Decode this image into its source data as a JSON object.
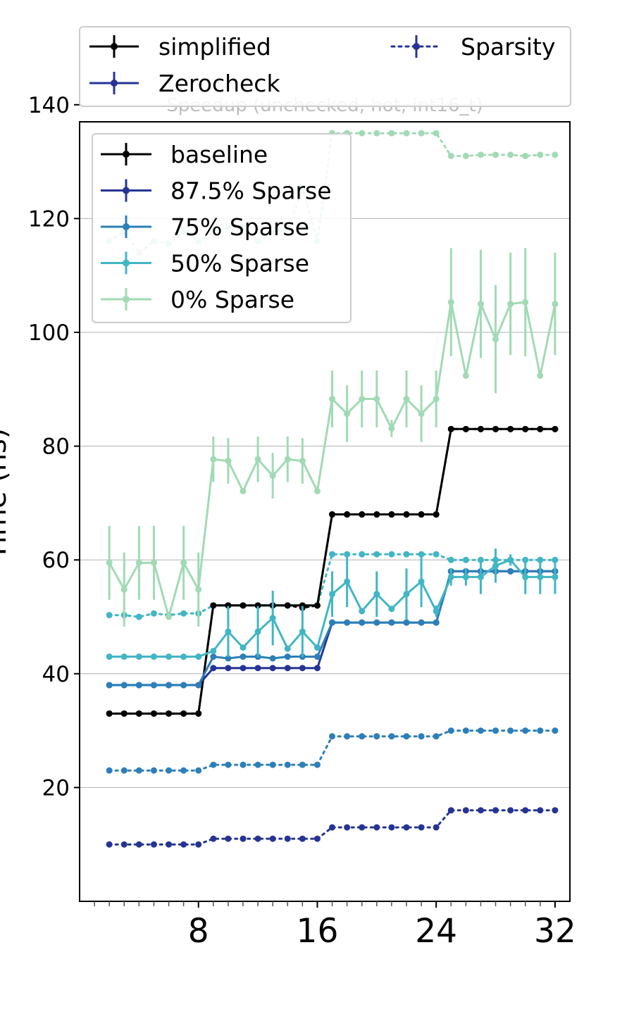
{
  "chart_data": {
    "type": "line",
    "title": "Speedup (unchecked, hot, int16_t)",
    "ylabel": "Time (ns)",
    "xlabel": "",
    "xlim": [
      0,
      33
    ],
    "ylim": [
      0,
      137
    ],
    "x_ticks": [
      8,
      16,
      24,
      32
    ],
    "y_ticks": [
      20,
      40,
      60,
      80,
      100,
      120,
      140
    ],
    "x_minor_ticks": [
      1,
      2,
      3,
      4,
      5,
      6,
      7,
      8,
      9,
      10,
      11,
      12,
      13,
      14,
      15,
      16,
      17,
      18,
      19,
      20,
      21,
      22,
      23,
      24,
      25,
      26,
      27,
      28,
      29,
      30,
      31,
      32
    ],
    "grid": "horizontal",
    "legend_style": {
      "title": "",
      "placement": "above plot",
      "entries": [
        {
          "label": "simplified",
          "color": "#000000",
          "dash": "solid"
        },
        {
          "label": "Sparsity",
          "color": "#253494",
          "dash": "dotted"
        },
        {
          "label": "Zerocheck",
          "color": "#253494",
          "dash": "solid"
        }
      ]
    },
    "legend_series": {
      "placement": "upper-left",
      "entries": [
        {
          "label": "baseline",
          "color": "#000000"
        },
        {
          "label": "87.5% Sparse",
          "color": "#253494"
        },
        {
          "label": "75% Sparse",
          "color": "#2c7fb8"
        },
        {
          "label": "50% Sparse",
          "color": "#41b6c4"
        },
        {
          "label": "0% Sparse",
          "color": "#a1dab4"
        }
      ]
    },
    "x": [
      2,
      3,
      4,
      5,
      6,
      7,
      8,
      9,
      10,
      11,
      12,
      13,
      14,
      15,
      16,
      17,
      18,
      19,
      20,
      21,
      22,
      23,
      24,
      25,
      26,
      27,
      28,
      29,
      30,
      31,
      32
    ],
    "series": [
      {
        "name": "baseline",
        "style": "solid",
        "color": "#000000",
        "values": [
          33,
          33,
          33,
          33,
          33,
          33,
          33,
          52,
          52,
          52,
          52,
          52,
          52,
          52,
          52,
          68,
          68,
          68,
          68,
          68,
          68,
          68,
          68,
          83,
          83,
          83,
          83,
          83,
          83,
          83,
          83
        ]
      },
      {
        "name": "87.5% Sparse",
        "style": "solid",
        "color": "#253494",
        "values": [
          38,
          38,
          38,
          38,
          38,
          38,
          38,
          41,
          41,
          41,
          41,
          41,
          41,
          41,
          41,
          49,
          49,
          49,
          49,
          49,
          49,
          49,
          49,
          58,
          58,
          58,
          58,
          58,
          58,
          58,
          58
        ]
      },
      {
        "name": "75% Sparse",
        "style": "solid",
        "color": "#2c7fb8",
        "values": [
          38,
          38,
          38,
          38,
          38,
          38,
          38,
          43,
          42.7,
          43,
          43,
          42.7,
          43,
          43,
          43,
          49,
          49,
          49,
          49,
          49,
          49,
          49,
          49,
          58,
          58,
          58,
          58,
          58,
          58,
          58,
          58
        ]
      },
      {
        "name": "50% Sparse",
        "style": "solid",
        "color": "#41b6c4",
        "values": [
          43,
          43,
          43,
          43,
          43,
          43,
          43,
          44,
          47.4,
          44.6,
          47.4,
          49.8,
          44.4,
          47.4,
          44.6,
          54,
          56.2,
          51,
          54,
          51.4,
          54,
          56.2,
          51,
          57,
          57,
          57,
          59,
          60,
          57,
          57,
          57
        ],
        "errors": [
          0,
          0,
          0,
          0,
          0,
          0,
          0,
          0,
          4.5,
          0,
          4.5,
          4.8,
          0,
          4.5,
          0,
          4,
          4.5,
          0,
          4,
          0,
          4.5,
          4.5,
          1,
          1.5,
          1.5,
          3,
          3,
          1,
          3,
          3,
          3
        ]
      },
      {
        "name": "0% Sparse",
        "style": "solid",
        "color": "#a1dab4",
        "values": [
          59.5,
          54.8,
          59.5,
          59.5,
          50,
          59.5,
          54.8,
          77.7,
          77.4,
          72.1,
          77.7,
          74.8,
          77.7,
          77.4,
          72.1,
          88.3,
          85.7,
          88.3,
          88.3,
          83.1,
          88.3,
          85.7,
          88.3,
          105.3,
          92.4,
          105,
          98.8,
          105,
          105.3,
          92.4,
          105
        ],
        "errors": [
          6.5,
          6.5,
          6.5,
          6.5,
          0,
          6.5,
          6.5,
          4,
          4,
          0,
          4,
          4,
          4,
          4,
          0,
          5,
          5,
          5,
          5,
          1.5,
          5,
          5,
          5,
          9.5,
          0,
          9.5,
          9.5,
          9,
          9.5,
          0,
          9
        ]
      },
      {
        "name": "baseline simplified",
        "style": "dotted",
        "color": "#000000",
        "values": [
          33,
          33,
          33,
          33,
          33,
          33,
          33,
          52,
          52,
          52,
          52,
          52,
          52,
          51.6,
          52,
          68,
          68,
          68,
          68,
          68,
          68,
          68,
          68,
          83,
          83,
          83,
          83,
          83,
          83,
          83,
          83
        ]
      },
      {
        "name": "87.5% Sparse simplified",
        "style": "dotted",
        "color": "#253494",
        "values": [
          10,
          10,
          10,
          10,
          10,
          10,
          10,
          11,
          11,
          11,
          11,
          11,
          11,
          11,
          11,
          13,
          13,
          13,
          13,
          13,
          13,
          13,
          13,
          16,
          16,
          16,
          16,
          16,
          16,
          16,
          16
        ]
      },
      {
        "name": "75% Sparse simplified",
        "style": "dotted",
        "color": "#2c7fb8",
        "values": [
          23,
          23,
          23,
          23,
          23,
          23,
          23,
          24,
          24,
          24,
          24,
          24,
          24,
          24,
          24,
          29,
          29,
          29,
          29,
          29,
          29,
          29,
          29,
          30,
          30,
          30,
          30,
          30,
          30,
          30,
          30
        ]
      },
      {
        "name": "50% Sparse simplified",
        "style": "dotted",
        "color": "#41b6c4",
        "values": [
          50.3,
          50.3,
          50,
          50.6,
          50.3,
          50.6,
          50.6,
          52,
          52,
          52,
          52,
          52,
          52,
          52,
          52,
          61,
          61,
          61,
          61,
          61,
          61,
          61,
          61,
          60,
          60,
          60,
          60,
          60,
          60,
          60,
          60
        ]
      },
      {
        "name": "0% Sparse simplified",
        "style": "dotted",
        "color": "#a1dab4",
        "values": [
          116,
          117.7,
          114,
          116,
          115.6,
          117.7,
          116,
          117.7,
          118.5,
          118.5,
          116,
          117.7,
          117.7,
          125.4,
          116,
          135,
          135,
          135,
          135,
          135,
          135,
          135,
          135,
          131,
          131,
          131.2,
          131.2,
          131.2,
          131,
          131.2,
          131.2
        ]
      }
    ]
  }
}
